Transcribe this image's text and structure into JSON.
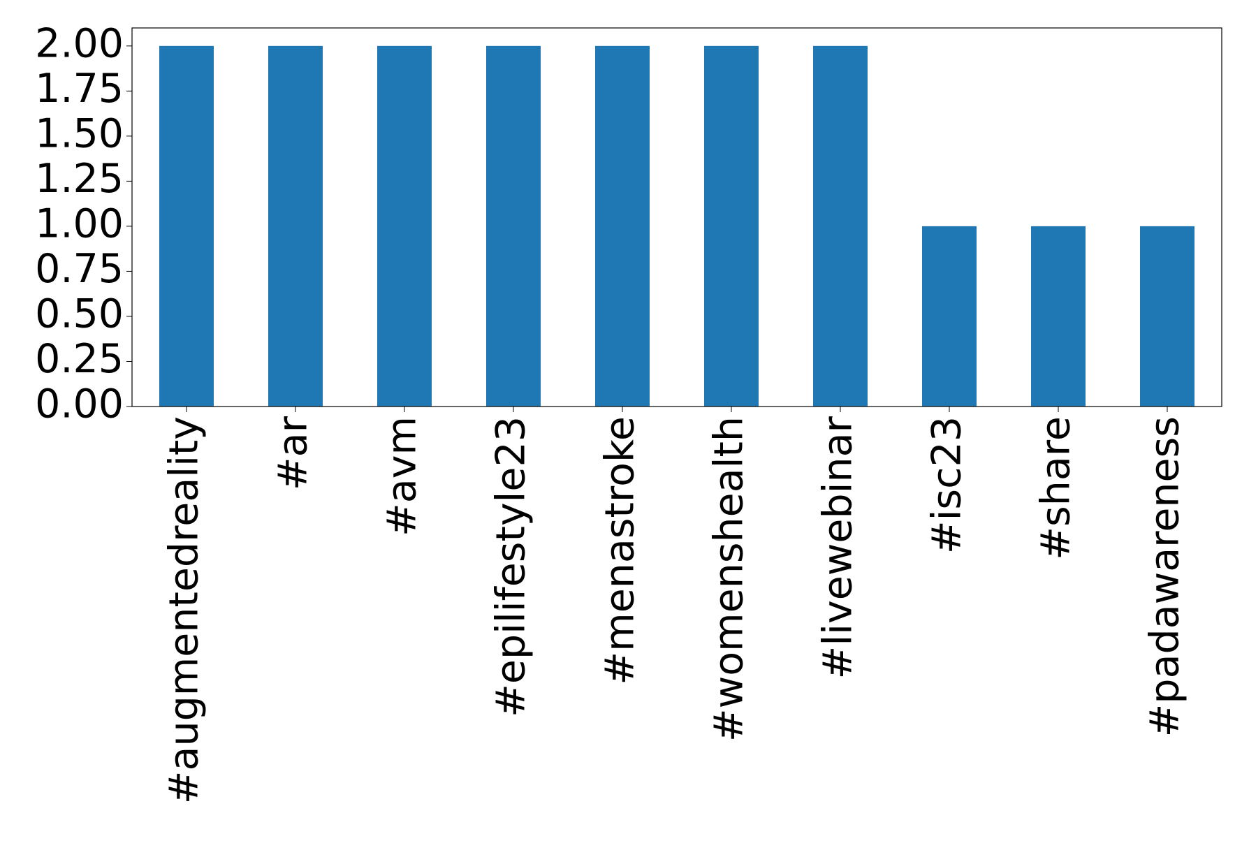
{
  "chart_data": {
    "type": "bar",
    "categories": [
      "#augmentedreality",
      "#ar",
      "#avm",
      "#epilifestyle23",
      "#menastroke",
      "#womenshealth",
      "#livewebinar",
      "#isc23",
      "#share",
      "#padawareness"
    ],
    "values": [
      2,
      2,
      2,
      2,
      2,
      2,
      2,
      1,
      1,
      1
    ],
    "color": "#1f77b4",
    "ylim": [
      0,
      2.1
    ],
    "yticks": [
      {
        "value": 0,
        "label": "0.00"
      },
      {
        "value": 0.25,
        "label": "0.25"
      },
      {
        "value": 0.5,
        "label": "0.50"
      },
      {
        "value": 0.75,
        "label": "0.75"
      },
      {
        "value": 1,
        "label": "1.00"
      },
      {
        "value": 1.25,
        "label": "1.25"
      },
      {
        "value": 1.5,
        "label": "1.50"
      },
      {
        "value": 1.75,
        "label": "1.75"
      },
      {
        "value": 2,
        "label": "2.00"
      }
    ],
    "grid": false
  }
}
